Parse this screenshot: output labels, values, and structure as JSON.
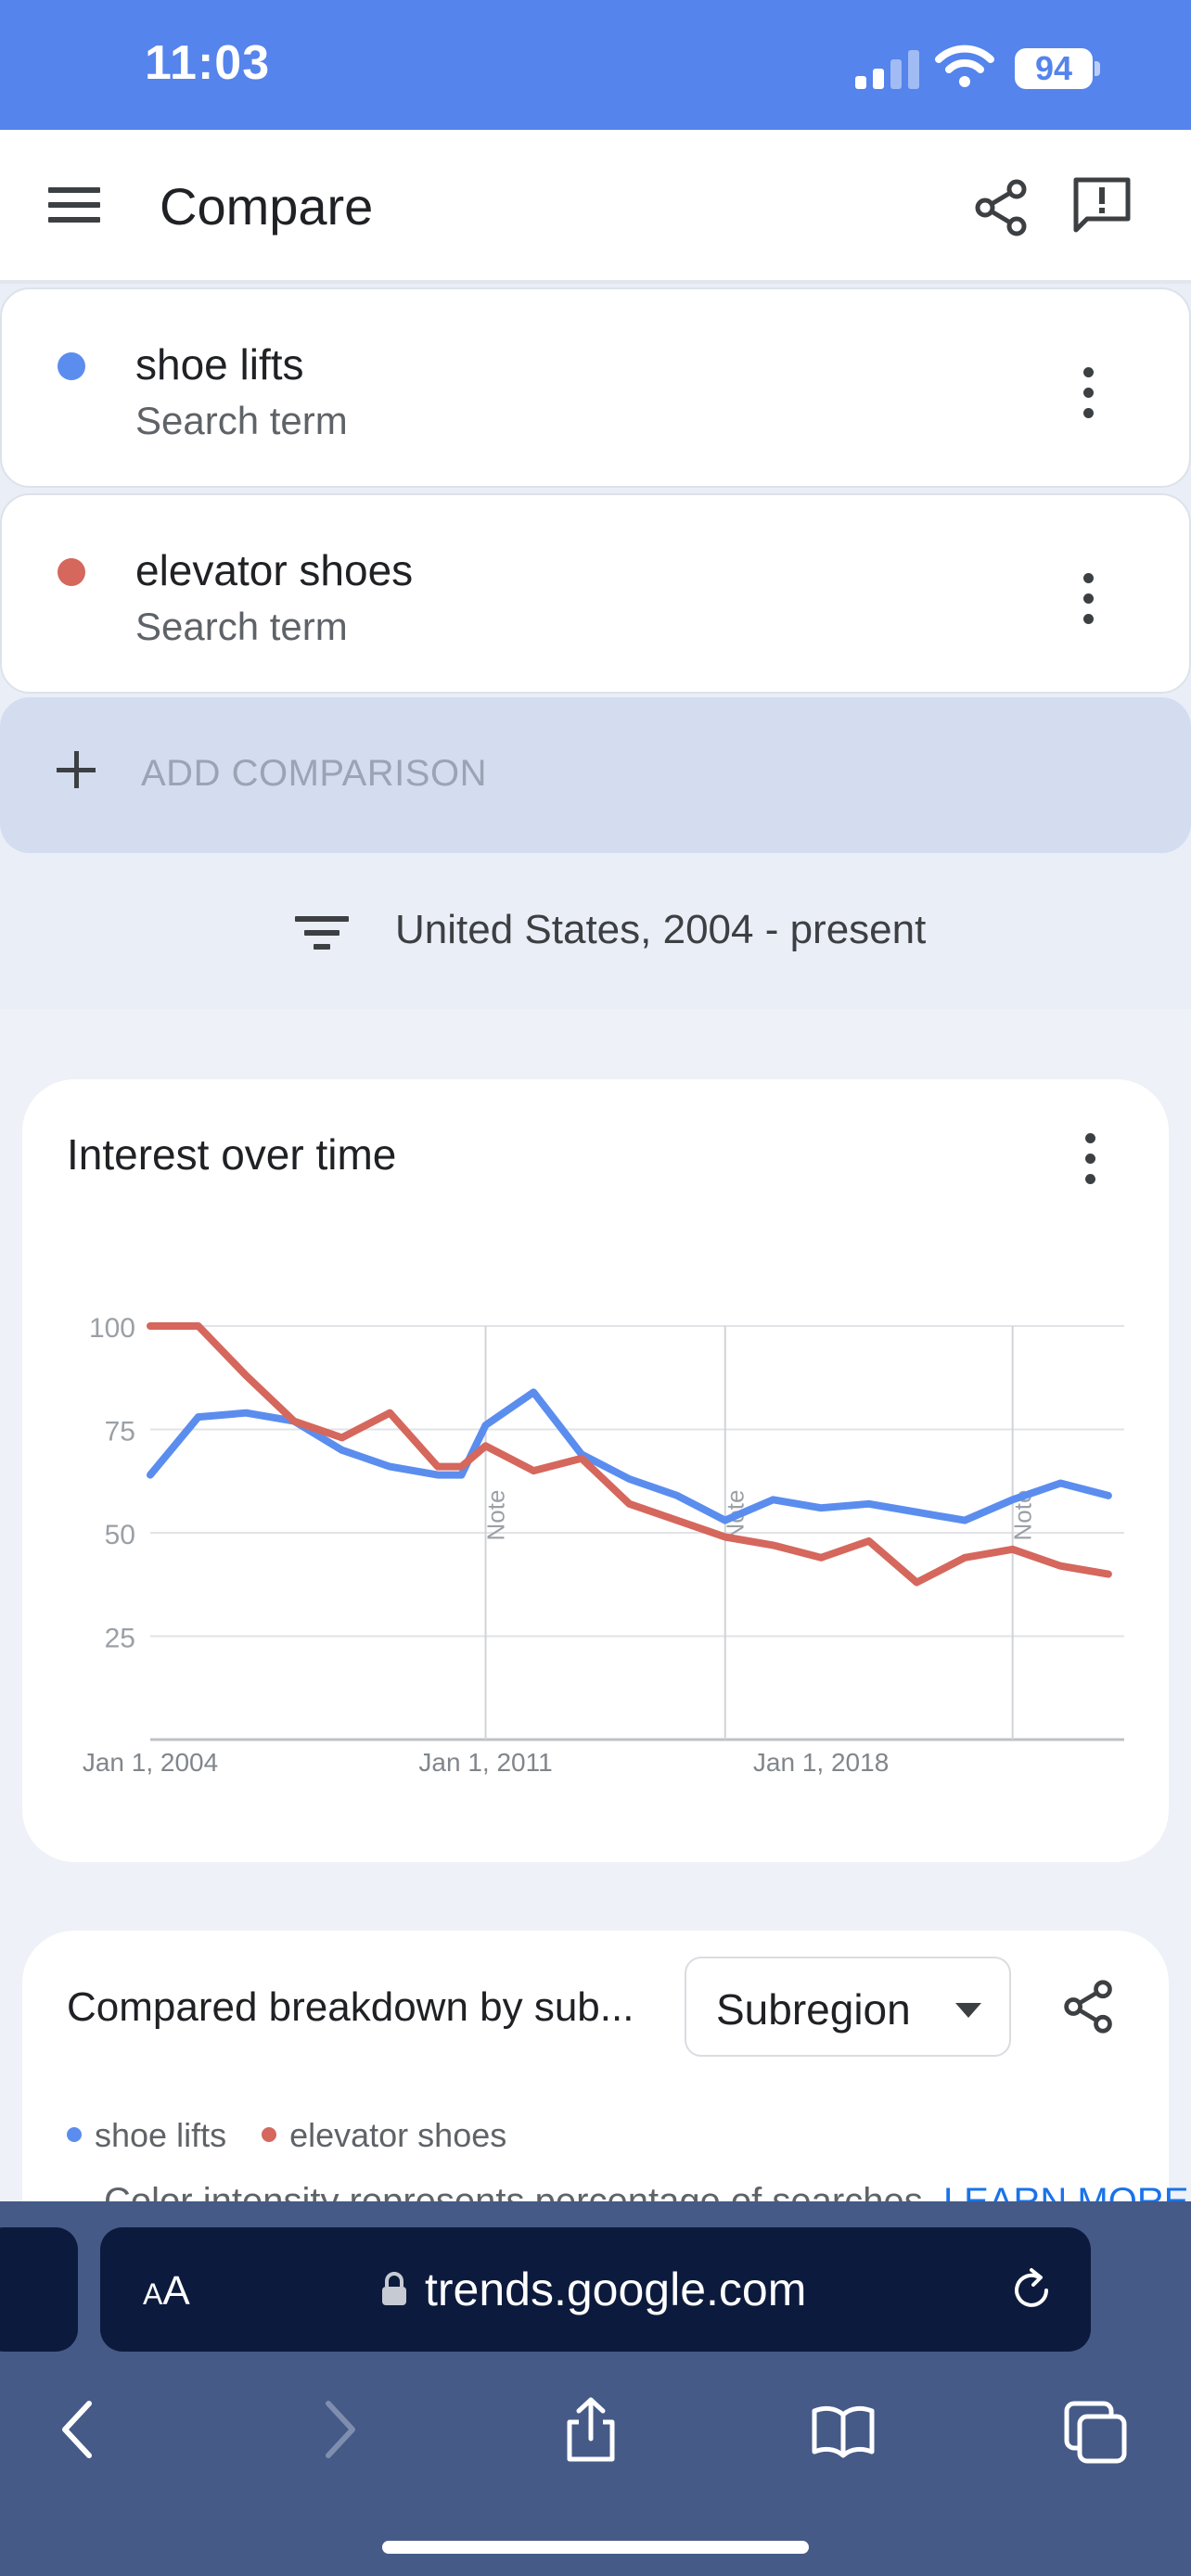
{
  "status": {
    "time": "11:03",
    "battery": "94"
  },
  "appbar": {
    "title": "Compare"
  },
  "terms": [
    {
      "name": "shoe lifts",
      "type": "Search term",
      "color": "#5b8def"
    },
    {
      "name": "elevator shoes",
      "type": "Search term",
      "color": "#d5675d"
    }
  ],
  "add_comparison": "ADD COMPARISON",
  "filter": "United States, 2004 - present",
  "chart_card": {
    "title": "Interest over time",
    "chart_data": {
      "type": "line",
      "title": "",
      "ylim": [
        0,
        100
      ],
      "yticks": [
        25,
        50,
        75,
        100
      ],
      "xticks": [
        "Jan 1, 2004",
        "Jan 1, 2011",
        "Jan 1, 2018"
      ],
      "x_range": [
        "2004-01-01",
        "2024-05-01"
      ],
      "grid": true,
      "annotations": [
        {
          "label": "Note",
          "x": "2011-01-01"
        },
        {
          "label": "Note",
          "x": "2016-01-01"
        },
        {
          "label": "Note",
          "x": "2022-01-01"
        }
      ],
      "x": [
        "2004-01-01",
        "2005-01-01",
        "2006-01-01",
        "2007-01-01",
        "2008-01-01",
        "2009-01-01",
        "2010-01-01",
        "2010-07-01",
        "2011-01-01",
        "2012-01-01",
        "2013-01-01",
        "2014-01-01",
        "2015-01-01",
        "2016-01-01",
        "2017-01-01",
        "2018-01-01",
        "2019-01-01",
        "2020-01-01",
        "2021-01-01",
        "2022-01-01",
        "2023-01-01",
        "2024-01-01"
      ],
      "series": [
        {
          "name": "shoe lifts",
          "color": "#5b8def",
          "values": [
            64,
            78,
            79,
            77,
            70,
            66,
            64,
            64,
            76,
            84,
            69,
            63,
            59,
            53,
            58,
            56,
            57,
            55,
            53,
            58,
            62,
            59
          ]
        },
        {
          "name": "elevator shoes",
          "color": "#d5675d",
          "values": [
            100,
            100,
            88,
            77,
            73,
            79,
            66,
            66,
            71,
            65,
            68,
            57,
            53,
            49,
            47,
            44,
            48,
            38,
            44,
            46,
            42,
            40
          ]
        }
      ]
    }
  },
  "breakdown": {
    "title": "Compared breakdown by sub...",
    "select_value": "Subregion",
    "legend": [
      "shoe lifts",
      "elevator shoes"
    ],
    "description": "Color intensity represents percentage of searches.",
    "learn_more": "LEARN MORE"
  },
  "browser": {
    "aa_large": "A",
    "aa_small": "A",
    "url": "trends.google.com"
  }
}
